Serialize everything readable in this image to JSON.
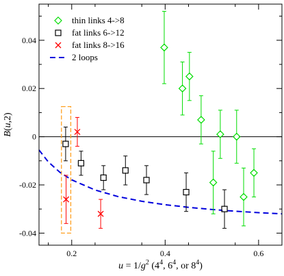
{
  "chart_data": {
    "type": "scatter",
    "xlabel": "u = 1/g² (4⁴, 6⁴, or 8⁴)",
    "xlabel_parts": {
      "u": "u",
      "eq": " = 1/",
      "g": "g",
      "sup": "2",
      "rest": " (4",
      "p1": "4",
      "mid1": ", 6",
      "p2": "4",
      "mid2": ", or 8",
      "p3": "4",
      "end": ")"
    },
    "ylabel": "B(u,2)",
    "ylabel_parts": {
      "b": "B",
      "rest": "(u,2)",
      "u": "u",
      "open": "(",
      "close": ",2)"
    },
    "xlim": [
      0.13,
      0.65
    ],
    "ylim": [
      -0.045,
      0.055
    ],
    "xticks": [
      0.2,
      0.4,
      0.6
    ],
    "xtick_labels": [
      "0.2",
      "0.4",
      "0.6"
    ],
    "yticks": [
      -0.04,
      -0.02,
      0,
      0.02,
      0.04
    ],
    "ytick_labels": [
      "-0.04",
      "-0.02",
      "0",
      "0.02",
      "0.04"
    ],
    "legend_position": "top-left",
    "series": [
      {
        "name": "thin links 4->8",
        "marker": "diamond",
        "color": "#00dd00",
        "points": [
          {
            "x": 0.398,
            "y": 0.037,
            "err": 0.015
          },
          {
            "x": 0.437,
            "y": 0.02,
            "err": 0.011
          },
          {
            "x": 0.452,
            "y": 0.025,
            "err": 0.01
          },
          {
            "x": 0.477,
            "y": 0.007,
            "err": 0.01
          },
          {
            "x": 0.503,
            "y": -0.019,
            "err": 0.013
          },
          {
            "x": 0.518,
            "y": 0.001,
            "err": 0.01
          },
          {
            "x": 0.553,
            "y": 0.0,
            "err": 0.011
          },
          {
            "x": 0.568,
            "y": -0.025,
            "err": 0.012
          },
          {
            "x": 0.59,
            "y": -0.015,
            "err": 0.01
          }
        ]
      },
      {
        "name": "fat links 6->12",
        "marker": "square",
        "color": "#000000",
        "points": [
          {
            "x": 0.187,
            "y": -0.003,
            "err": 0.007
          },
          {
            "x": 0.22,
            "y": -0.011,
            "err": 0.005
          },
          {
            "x": 0.268,
            "y": -0.017,
            "err": 0.005
          },
          {
            "x": 0.315,
            "y": -0.014,
            "err": 0.006
          },
          {
            "x": 0.36,
            "y": -0.018,
            "err": 0.006
          },
          {
            "x": 0.445,
            "y": -0.023,
            "err": 0.008
          },
          {
            "x": 0.527,
            "y": -0.03,
            "err": 0.008
          }
        ]
      },
      {
        "name": "fat links 8->16",
        "marker": "x",
        "color": "#ff0000",
        "points": [
          {
            "x": 0.212,
            "y": 0.002,
            "err": 0.006
          },
          {
            "x": 0.188,
            "y": -0.026,
            "err": 0.01
          },
          {
            "x": 0.262,
            "y": -0.032,
            "err": 0.006
          }
        ]
      },
      {
        "name": "2 loops",
        "marker": "dashed-line",
        "color": "#0000dd",
        "curve_points": [
          {
            "x": 0.13,
            "y": -0.0055
          },
          {
            "x": 0.15,
            "y": -0.0105
          },
          {
            "x": 0.175,
            "y": -0.0148
          },
          {
            "x": 0.2,
            "y": -0.0179
          },
          {
            "x": 0.25,
            "y": -0.0221
          },
          {
            "x": 0.3,
            "y": -0.0249
          },
          {
            "x": 0.35,
            "y": -0.0268
          },
          {
            "x": 0.4,
            "y": -0.0282
          },
          {
            "x": 0.45,
            "y": -0.0293
          },
          {
            "x": 0.5,
            "y": -0.0302
          },
          {
            "x": 0.55,
            "y": -0.0309
          },
          {
            "x": 0.6,
            "y": -0.0315
          },
          {
            "x": 0.65,
            "y": -0.032
          }
        ]
      }
    ],
    "reference_line_y": 0,
    "highlight_box": {
      "x_range": [
        0.178,
        0.198
      ],
      "y_range": [
        -0.04,
        0.0125
      ],
      "color": "#ffa020",
      "style": "dashed"
    }
  }
}
